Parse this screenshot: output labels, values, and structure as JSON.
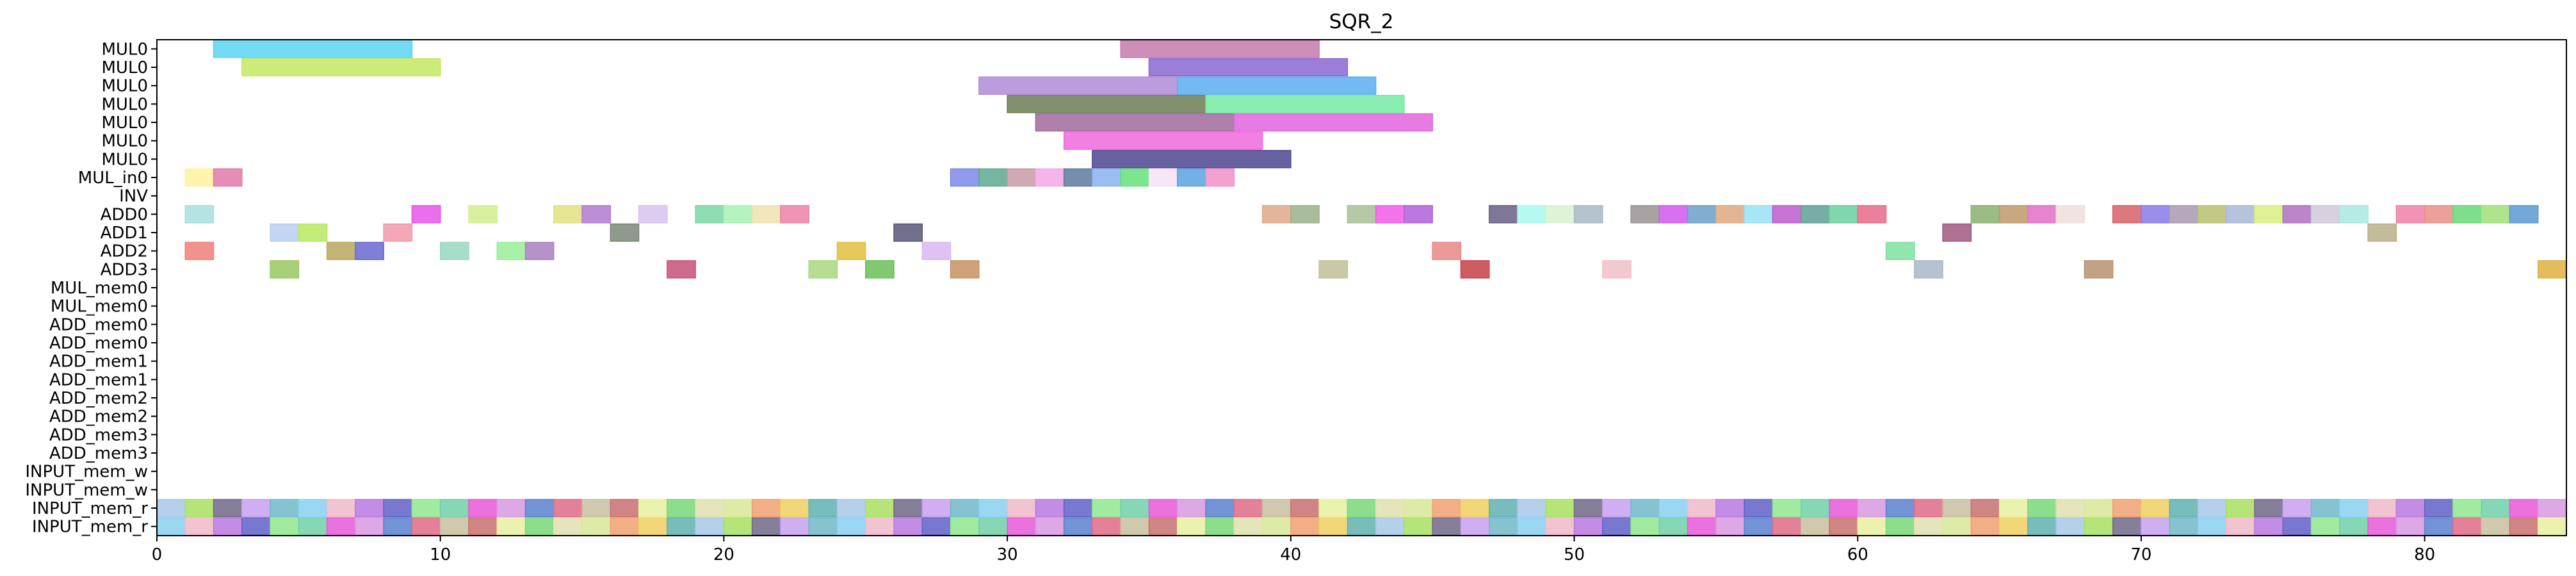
{
  "chart_data": {
    "type": "gantt",
    "title": "SQR_2",
    "xlabel": "",
    "ylabel": "",
    "xlim": [
      0,
      85
    ],
    "xticks": [
      0,
      10,
      20,
      30,
      40,
      50,
      60,
      70,
      80
    ],
    "grid": false,
    "rows": [
      "MUL0",
      "MUL0",
      "MUL0",
      "MUL0",
      "MUL0",
      "MUL0",
      "MUL0",
      "MUL_in0",
      "INV",
      "ADD0",
      "ADD1",
      "ADD2",
      "ADD3",
      "MUL_mem0",
      "MUL_mem0",
      "ADD_mem0",
      "ADD_mem0",
      "ADD_mem1",
      "ADD_mem1",
      "ADD_mem2",
      "ADD_mem2",
      "ADD_mem3",
      "ADD_mem3",
      "INPUT_mem_w",
      "INPUT_mem_w",
      "INPUT_mem_r",
      "INPUT_mem_r"
    ],
    "tasks": [
      {
        "row": 0,
        "start": 2,
        "end": 9,
        "color": "#5bd3f2"
      },
      {
        "row": 0,
        "start": 34,
        "end": 41,
        "color": "#c47aae"
      },
      {
        "row": 1,
        "start": 3,
        "end": 10,
        "color": "#c4e860"
      },
      {
        "row": 1,
        "start": 35,
        "end": 42,
        "color": "#8a67d0"
      },
      {
        "row": 2,
        "start": 29,
        "end": 36,
        "color": "#b08ad8"
      },
      {
        "row": 2,
        "start": 36,
        "end": 43,
        "color": "#5aaef2"
      },
      {
        "row": 3,
        "start": 30,
        "end": 37,
        "color": "#6d7d55"
      },
      {
        "row": 3,
        "start": 37,
        "end": 44,
        "color": "#74eaa2"
      },
      {
        "row": 4,
        "start": 31,
        "end": 38,
        "color": "#a06a9c"
      },
      {
        "row": 4,
        "start": 38,
        "end": 45,
        "color": "#e065dc"
      },
      {
        "row": 5,
        "start": 32,
        "end": 39,
        "color": "#f06ade"
      },
      {
        "row": 6,
        "start": 33,
        "end": 40,
        "color": "#4e4690"
      },
      {
        "row": 7,
        "start": 1,
        "end": 2,
        "color": "#fff2a0"
      },
      {
        "row": 7,
        "start": 2,
        "end": 3,
        "color": "#e07aa8"
      },
      {
        "row": 7,
        "start": 28,
        "end": 29,
        "color": "#7a88e8"
      },
      {
        "row": 7,
        "start": 29,
        "end": 30,
        "color": "#5ea890"
      },
      {
        "row": 7,
        "start": 30,
        "end": 31,
        "color": "#c89aa8"
      },
      {
        "row": 7,
        "start": 31,
        "end": 32,
        "color": "#f2a8e6"
      },
      {
        "row": 7,
        "start": 32,
        "end": 33,
        "color": "#5d7a9e"
      },
      {
        "row": 7,
        "start": 33,
        "end": 34,
        "color": "#8ab2ee"
      },
      {
        "row": 7,
        "start": 34,
        "end": 35,
        "color": "#64e27a"
      },
      {
        "row": 7,
        "start": 35,
        "end": 36,
        "color": "#f4e2f4"
      },
      {
        "row": 7,
        "start": 36,
        "end": 37,
        "color": "#5aa2e2"
      },
      {
        "row": 7,
        "start": 37,
        "end": 38,
        "color": "#f090c8"
      },
      {
        "row": 9,
        "start": 1,
        "end": 2,
        "color": "#a8dede"
      },
      {
        "row": 9,
        "start": 9,
        "end": 10,
        "color": "#e855e8"
      },
      {
        "row": 9,
        "start": 11,
        "end": 12,
        "color": "#d2ee8e"
      },
      {
        "row": 9,
        "start": 14,
        "end": 15,
        "color": "#e2e080"
      },
      {
        "row": 9,
        "start": 15,
        "end": 16,
        "color": "#b07ad0"
      },
      {
        "row": 9,
        "start": 17,
        "end": 18,
        "color": "#d8c2f0"
      },
      {
        "row": 9,
        "start": 19,
        "end": 20,
        "color": "#7ad8a6"
      },
      {
        "row": 9,
        "start": 20,
        "end": 21,
        "color": "#a8f2b6"
      },
      {
        "row": 9,
        "start": 21,
        "end": 22,
        "color": "#eee2b0"
      },
      {
        "row": 9,
        "start": 22,
        "end": 23,
        "color": "#ee80a8"
      },
      {
        "row": 9,
        "start": 39,
        "end": 40,
        "color": "#dea88a"
      },
      {
        "row": 9,
        "start": 40,
        "end": 41,
        "color": "#9ab28a"
      },
      {
        "row": 9,
        "start": 42,
        "end": 43,
        "color": "#a8c098"
      },
      {
        "row": 9,
        "start": 43,
        "end": 44,
        "color": "#f05ae8"
      },
      {
        "row": 9,
        "start": 44,
        "end": 45,
        "color": "#b060d8"
      },
      {
        "row": 9,
        "start": 47,
        "end": 48,
        "color": "#6a5e88"
      },
      {
        "row": 9,
        "start": 48,
        "end": 49,
        "color": "#a8f8ee"
      },
      {
        "row": 9,
        "start": 49,
        "end": 50,
        "color": "#d8f2d0"
      },
      {
        "row": 9,
        "start": 50,
        "end": 51,
        "color": "#a8b8c8"
      },
      {
        "row": 9,
        "start": 52,
        "end": 53,
        "color": "#9a9294"
      },
      {
        "row": 9,
        "start": 53,
        "end": 54,
        "color": "#d058f0"
      },
      {
        "row": 9,
        "start": 54,
        "end": 55,
        "color": "#6aa0c8"
      },
      {
        "row": 9,
        "start": 55,
        "end": 56,
        "color": "#dea880"
      },
      {
        "row": 9,
        "start": 56,
        "end": 57,
        "color": "#98e0f6"
      },
      {
        "row": 9,
        "start": 57,
        "end": 58,
        "color": "#c05ad0"
      },
      {
        "row": 9,
        "start": 58,
        "end": 59,
        "color": "#5ea096"
      },
      {
        "row": 9,
        "start": 59,
        "end": 60,
        "color": "#6ad0a0"
      },
      {
        "row": 9,
        "start": 60,
        "end": 61,
        "color": "#e86a8a"
      },
      {
        "row": 9,
        "start": 64,
        "end": 65,
        "color": "#8ab070"
      },
      {
        "row": 9,
        "start": 65,
        "end": 66,
        "color": "#c09868"
      },
      {
        "row": 9,
        "start": 66,
        "end": 67,
        "color": "#e070c8"
      },
      {
        "row": 9,
        "start": 67,
        "end": 68,
        "color": "#f0dede"
      },
      {
        "row": 9,
        "start": 69,
        "end": 70,
        "color": "#d86068"
      },
      {
        "row": 9,
        "start": 70,
        "end": 71,
        "color": "#8a7ae8"
      },
      {
        "row": 9,
        "start": 71,
        "end": 72,
        "color": "#a898b0"
      },
      {
        "row": 9,
        "start": 72,
        "end": 73,
        "color": "#b8c070"
      },
      {
        "row": 9,
        "start": 73,
        "end": 74,
        "color": "#a8b8d8"
      },
      {
        "row": 9,
        "start": 74,
        "end": 75,
        "color": "#d8f080"
      },
      {
        "row": 9,
        "start": 75,
        "end": 76,
        "color": "#b070c0"
      },
      {
        "row": 9,
        "start": 76,
        "end": 77,
        "color": "#d0c8d8"
      },
      {
        "row": 9,
        "start": 77,
        "end": 78,
        "color": "#a8e8e0"
      },
      {
        "row": 9,
        "start": 79,
        "end": 80,
        "color": "#f080a8"
      },
      {
        "row": 9,
        "start": 80,
        "end": 81,
        "color": "#e89088"
      },
      {
        "row": 9,
        "start": 81,
        "end": 82,
        "color": "#68d878"
      },
      {
        "row": 9,
        "start": 82,
        "end": 83,
        "color": "#a0e078"
      },
      {
        "row": 9,
        "start": 83,
        "end": 84,
        "color": "#5a9ad0"
      },
      {
        "row": 10,
        "start": 4,
        "end": 5,
        "color": "#b8cef0"
      },
      {
        "row": 10,
        "start": 5,
        "end": 6,
        "color": "#b8e860"
      },
      {
        "row": 10,
        "start": 8,
        "end": 9,
        "color": "#f09aa8"
      },
      {
        "row": 10,
        "start": 16,
        "end": 17,
        "color": "#7a8878"
      },
      {
        "row": 10,
        "start": 26,
        "end": 27,
        "color": "#585878"
      },
      {
        "row": 10,
        "start": 63,
        "end": 64,
        "color": "#a05880"
      },
      {
        "row": 10,
        "start": 78,
        "end": 79,
        "color": "#b8b088"
      },
      {
        "row": 11,
        "start": 1,
        "end": 2,
        "color": "#ee8078"
      },
      {
        "row": 11,
        "start": 6,
        "end": 7,
        "color": "#b8a860"
      },
      {
        "row": 11,
        "start": 7,
        "end": 8,
        "color": "#6a68d0"
      },
      {
        "row": 11,
        "start": 10,
        "end": 11,
        "color": "#98d8c0"
      },
      {
        "row": 11,
        "start": 12,
        "end": 13,
        "color": "#98f098"
      },
      {
        "row": 11,
        "start": 13,
        "end": 14,
        "color": "#a880c0"
      },
      {
        "row": 11,
        "start": 24,
        "end": 25,
        "color": "#e0c040"
      },
      {
        "row": 11,
        "start": 27,
        "end": 28,
        "color": "#d8b8f0"
      },
      {
        "row": 11,
        "start": 45,
        "end": 46,
        "color": "#e88888"
      },
      {
        "row": 11,
        "start": 61,
        "end": 62,
        "color": "#80e0a0"
      },
      {
        "row": 12,
        "start": 4,
        "end": 5,
        "color": "#98c860"
      },
      {
        "row": 12,
        "start": 18,
        "end": 19,
        "color": "#c85078"
      },
      {
        "row": 12,
        "start": 23,
        "end": 24,
        "color": "#a8d880"
      },
      {
        "row": 12,
        "start": 25,
        "end": 26,
        "color": "#68c058"
      },
      {
        "row": 12,
        "start": 28,
        "end": 29,
        "color": "#c89060"
      },
      {
        "row": 12,
        "start": 41,
        "end": 42,
        "color": "#c0c098"
      },
      {
        "row": 12,
        "start": 46,
        "end": 47,
        "color": "#c84048"
      },
      {
        "row": 12,
        "start": 51,
        "end": 52,
        "color": "#f0c0c8"
      },
      {
        "row": 12,
        "start": 62,
        "end": 63,
        "color": "#a8b8c8"
      },
      {
        "row": 12,
        "start": 68,
        "end": 69,
        "color": "#b89070"
      },
      {
        "row": 12,
        "start": 84,
        "end": 85,
        "color": "#e0b040"
      }
    ]
  }
}
